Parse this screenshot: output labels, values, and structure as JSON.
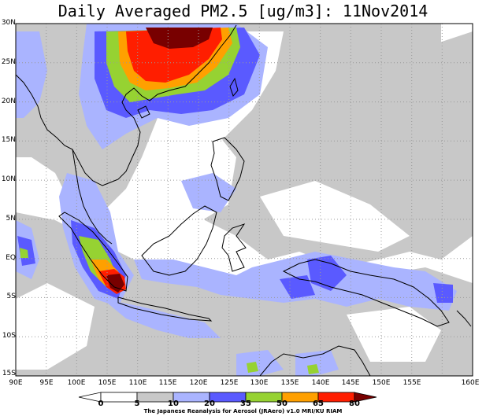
{
  "title": "Daily Averaged PM2.5 [ug/m3]: 11Nov2014",
  "y_ticks": [
    "30N",
    "25N",
    "20N",
    "15N",
    "10N",
    "5N",
    "EQ",
    "5S",
    "10S",
    "15S"
  ],
  "x_ticks": [
    "90E",
    "95E",
    "100E",
    "105E",
    "110E",
    "115E",
    "120E",
    "125E",
    "130E",
    "135E",
    "140E",
    "145E",
    "150E",
    "155E",
    "160E"
  ],
  "colorbar": {
    "labels": [
      "0",
      "5",
      "10",
      "20",
      "35",
      "50",
      "65",
      "80"
    ],
    "colors": [
      "#ffffff",
      "#c8c8c8",
      "#aab4ff",
      "#5a5aff",
      "#96d232",
      "#ffa000",
      "#ff1e00",
      "#780000"
    ]
  },
  "credit": "The Japanese Reanalysis for Aerosol (JRAero) v1.0 MRI/KU RIAM",
  "colors": {
    "background": "#ffffff",
    "grid": "#999999",
    "coast": "#000000"
  }
}
